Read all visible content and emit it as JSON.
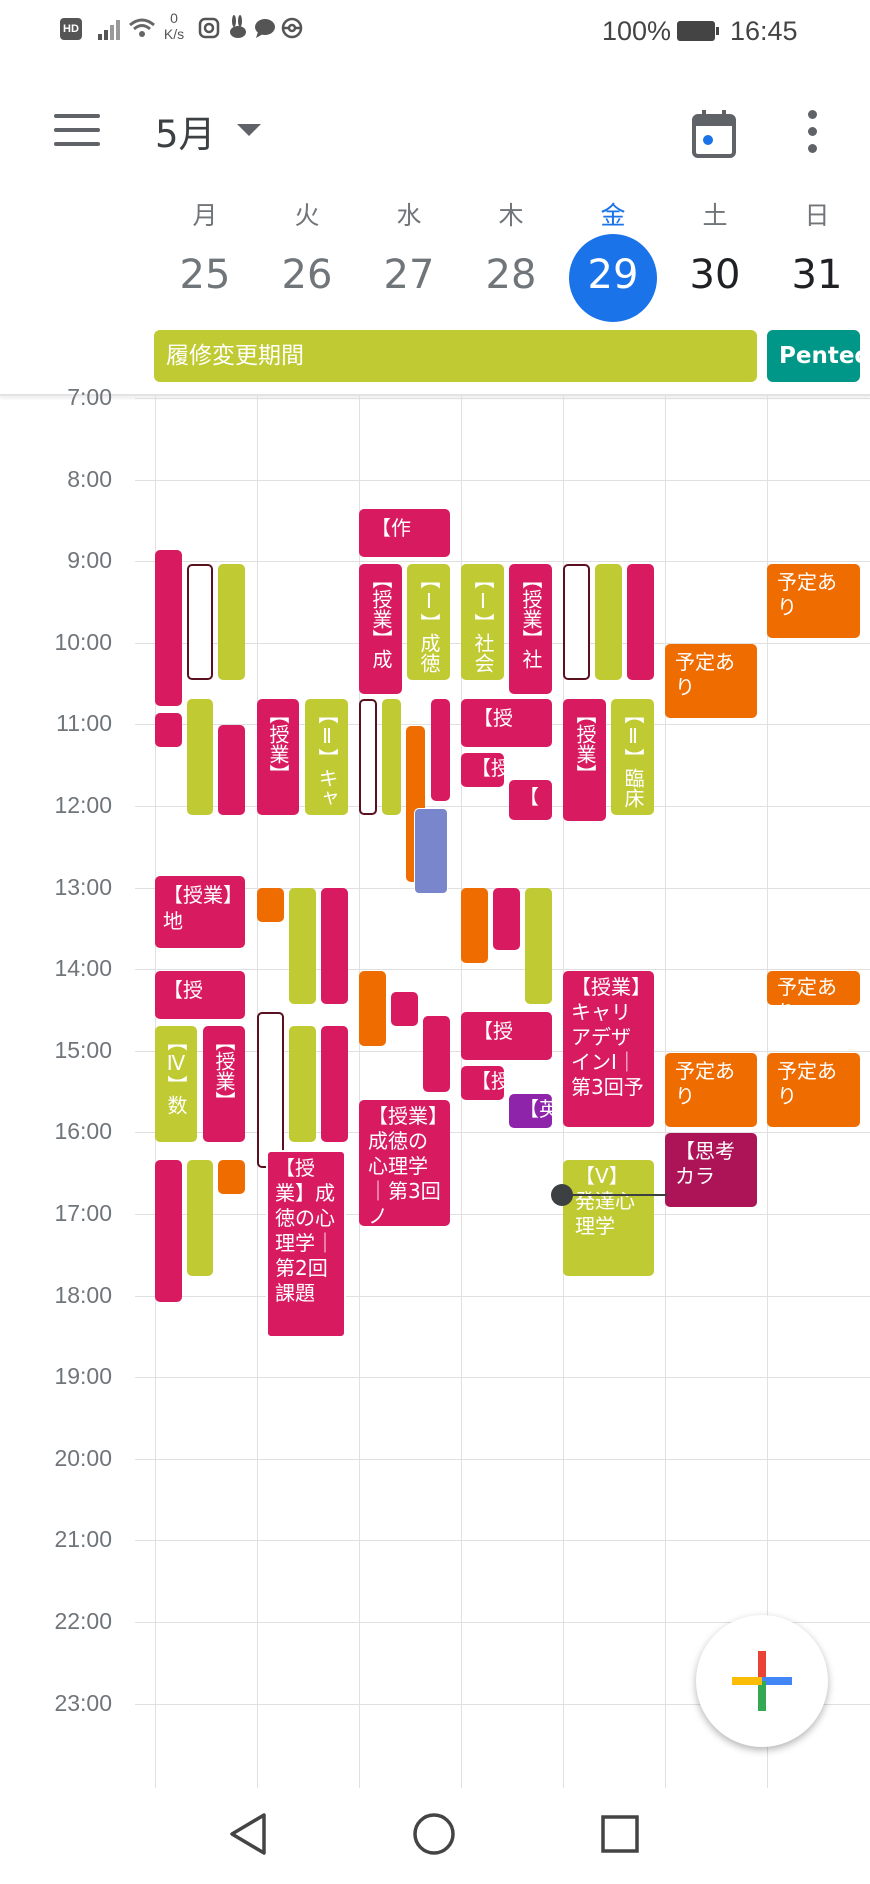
{
  "status_bar": {
    "hd_badge": "HD",
    "net_speed_value": "0",
    "net_speed_unit": "K/s",
    "battery": "100%",
    "time": "16:45"
  },
  "header": {
    "month": "5月",
    "days": [
      {
        "dow": "月",
        "num": "25"
      },
      {
        "dow": "火",
        "num": "26"
      },
      {
        "dow": "水",
        "num": "27"
      },
      {
        "dow": "木",
        "num": "28"
      },
      {
        "dow": "金",
        "num": "29"
      },
      {
        "dow": "土",
        "num": "30"
      },
      {
        "dow": "日",
        "num": "31"
      }
    ],
    "allday": [
      {
        "title": "履修変更期間",
        "color": "#c0ca33"
      },
      {
        "title": "Pentec",
        "color": "#009688"
      }
    ]
  },
  "hours": [
    "7:00",
    "8:00",
    "9:00",
    "10:00",
    "11:00",
    "12:00",
    "13:00",
    "14:00",
    "15:00",
    "16:00",
    "17:00",
    "18:00",
    "19:00",
    "20:00",
    "21:00",
    "22:00",
    "23:00"
  ],
  "events": {
    "wed_saku": "【作",
    "wed_jugyo_sei": "【授業】成",
    "wed_1_seitoku": "【Ⅰ】成徳",
    "thu_1_shakai": "【Ⅰ】社会",
    "thu_jugyo_sha": "【授業】社",
    "sat_yotei_1": "予定あり",
    "sun_yotei_1": "予定あり",
    "tue_jugyo_1": "【授業】",
    "tue_2_kya": "【Ⅱ】キャ",
    "thu_ju_1": "【授",
    "thu_ju_2": "【授",
    "thu_bracket": "【",
    "fri_jugyo_1": "【授業】",
    "fri_2_rinsho": "【Ⅱ】臨床",
    "mon_jugyo_chi": "【授業】地",
    "mon_ju": "【授",
    "mon_4_su": "【Ⅳ】数",
    "mon_jugyo_2": "【授業】",
    "thu_ju_3": "【授",
    "thu_ju_4": "【授",
    "thu_ei": "【英",
    "fri_career": "【授業】キャリアデザインⅠ｜第3回予",
    "sun_yotei_2": "予定あり",
    "sat_yotei_2": "予定あり",
    "sun_yotei_3": "予定あり",
    "wed_seitoku_3": "【授業】成徳の心理学｜第3回ノ",
    "tue_seitoku_2": "【授業】成徳の心理学｜第2回課題",
    "fri_5_hattatsu": "【Ⅴ】発達心理学",
    "sat_shiko": "【思考カラ"
  },
  "colors": {
    "today": "#1a73e8",
    "tomato_pink": "#d81b60",
    "pistachio": "#c0ca33",
    "tangerine": "#ef6c00",
    "lavender": "#7986cb",
    "grape": "#8e24aa",
    "magenta": "#ad1457",
    "teal": "#009688"
  },
  "icons": {
    "menu": "hamburger-icon",
    "dropdown": "caret-down-icon",
    "today": "calendar-today-icon",
    "more": "more-vert-icon",
    "create": "plus-icon",
    "back": "back-icon",
    "home": "home-icon",
    "recents": "recents-icon"
  }
}
